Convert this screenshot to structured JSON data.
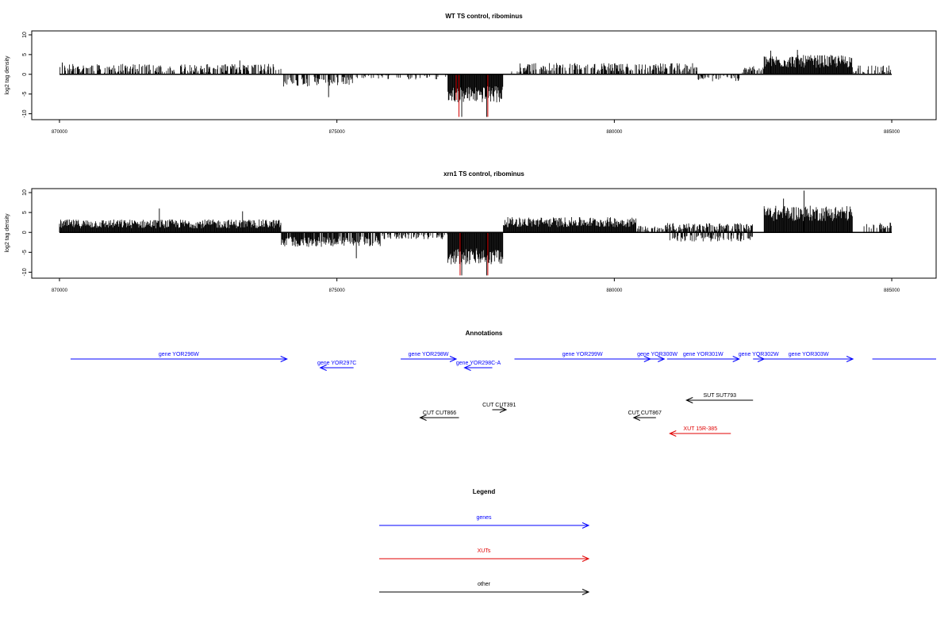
{
  "chart_data": [
    {
      "type": "bar",
      "title": "WT TS control, ribominus",
      "xlabel": "",
      "ylabel": "log2 tag density",
      "xlim": [
        869500,
        885800
      ],
      "ylim": [
        -11.5,
        11
      ],
      "x_ticks": [
        870000,
        875000,
        880000,
        885000
      ],
      "x_tick_labels": [
        "870000",
        "875000",
        "880000",
        "885000"
      ],
      "y_ticks": [
        -10,
        -5,
        0,
        5,
        10
      ],
      "y_tick_labels": [
        "-10",
        "-5",
        "0",
        "5",
        "10"
      ],
      "baseline_x": [
        870000,
        885000
      ],
      "segments": [
        {
          "from": 870000,
          "to": 874000,
          "mean": 1.2,
          "spread": 1.6,
          "density": 0.55,
          "sign": 1
        },
        {
          "from": 874000,
          "to": 875300,
          "mean": -1.5,
          "spread": 1.8,
          "density": 0.5,
          "sign": -1
        },
        {
          "from": 875300,
          "to": 877000,
          "mean": -0.6,
          "spread": 0.8,
          "density": 0.25,
          "sign": -1
        },
        {
          "from": 877000,
          "to": 878000,
          "mean": -4.5,
          "spread": 3,
          "density": 1,
          "sign": -1
        },
        {
          "from": 878000,
          "to": 878300,
          "mean": 0.4,
          "spread": 0.5,
          "density": 0.15,
          "sign": 1
        },
        {
          "from": 878300,
          "to": 881500,
          "mean": 1.4,
          "spread": 1.6,
          "density": 0.6,
          "sign": 1
        },
        {
          "from": 881500,
          "to": 882300,
          "mean": -0.8,
          "spread": 1.2,
          "density": 0.5,
          "sign": -1
        },
        {
          "from": 882300,
          "to": 882700,
          "mean": 1.0,
          "spread": 1.2,
          "density": 0.5,
          "sign": 1
        },
        {
          "from": 882700,
          "to": 884300,
          "mean": 2.8,
          "spread": 2.3,
          "density": 1,
          "sign": 1
        },
        {
          "from": 884300,
          "to": 885000,
          "mean": 1.0,
          "spread": 1.4,
          "density": 0.4,
          "sign": 1
        }
      ],
      "peaks": [
        [
          870050,
          3
        ],
        [
          873250,
          3.5
        ],
        [
          874850,
          -5.8
        ],
        [
          877250,
          -10.8
        ],
        [
          877700,
          -10.8
        ],
        [
          882820,
          6
        ],
        [
          883300,
          6.2
        ],
        [
          883700,
          4.8
        ]
      ],
      "highlight_bars": [
        {
          "x": 877200,
          "y": -10.8,
          "color": "#d40000"
        },
        {
          "x": 877720,
          "y": -10.8,
          "color": "#d40000"
        },
        {
          "x": 877150,
          "y": -6.5,
          "color": "#d40000"
        }
      ],
      "bar_color": "#000000"
    },
    {
      "type": "bar",
      "title": "xrn1 TS control, ribominus",
      "xlabel": "",
      "ylabel": "log2 tag density",
      "xlim": [
        869500,
        885800
      ],
      "ylim": [
        -11.5,
        11
      ],
      "x_ticks": [
        870000,
        875000,
        880000,
        885000
      ],
      "x_tick_labels": [
        "870000",
        "875000",
        "880000",
        "885000"
      ],
      "y_ticks": [
        -10,
        -5,
        0,
        5,
        10
      ],
      "y_tick_labels": [
        "-10",
        "-5",
        "0",
        "5",
        "10"
      ],
      "baseline_x": [
        870000,
        885000
      ],
      "segments": [
        {
          "from": 870000,
          "to": 874000,
          "mean": 1.8,
          "spread": 1.6,
          "density": 1,
          "sign": 1
        },
        {
          "from": 874000,
          "to": 875000,
          "mean": -2.0,
          "spread": 1.8,
          "density": 0.9,
          "sign": -1
        },
        {
          "from": 875000,
          "to": 875800,
          "mean": -1.8,
          "spread": 1.8,
          "density": 0.8,
          "sign": -1
        },
        {
          "from": 875800,
          "to": 877000,
          "mean": -0.8,
          "spread": 1.0,
          "density": 0.5,
          "sign": -1
        },
        {
          "from": 877000,
          "to": 878000,
          "mean": -5.5,
          "spread": 3,
          "density": 1,
          "sign": -1
        },
        {
          "from": 878000,
          "to": 880400,
          "mean": 2.2,
          "spread": 1.8,
          "density": 1,
          "sign": 1
        },
        {
          "from": 880400,
          "to": 880900,
          "mean": 0.8,
          "spread": 1.0,
          "density": 0.4,
          "sign": 1
        },
        {
          "from": 880900,
          "to": 882500,
          "mean": 1.0,
          "spread": 1.5,
          "density": 0.8,
          "sign": 1
        },
        {
          "from": 881000,
          "to": 882500,
          "mean": -1.2,
          "spread": 1.2,
          "density": 0.5,
          "sign": -1
        },
        {
          "from": 882700,
          "to": 884300,
          "mean": 4.2,
          "spread": 2.8,
          "density": 1,
          "sign": 1
        },
        {
          "from": 884500,
          "to": 885000,
          "mean": 1.3,
          "spread": 1.3,
          "density": 0.5,
          "sign": 1
        }
      ],
      "peaks": [
        [
          871800,
          6
        ],
        [
          873300,
          5.3
        ],
        [
          875350,
          -6.5
        ],
        [
          877250,
          -10.8
        ],
        [
          877700,
          -10.8
        ],
        [
          883420,
          10.5
        ],
        [
          883050,
          8.5
        ]
      ],
      "highlight_bars": [
        {
          "x": 877220,
          "y": -10.8,
          "color": "#d40000"
        },
        {
          "x": 877720,
          "y": -10.8,
          "color": "#d40000"
        }
      ],
      "bar_color": "#000000"
    }
  ],
  "annotations": {
    "title": "Annotations",
    "xlim": [
      869500,
      885800
    ],
    "features": [
      {
        "label": "gene YOR296W",
        "start": 870200,
        "end": 874100,
        "dir": 1,
        "row": 0,
        "color": "#0000ff"
      },
      {
        "label": "gene YOR297C",
        "start": 874700,
        "end": 875300,
        "dir": -1,
        "row": 1,
        "color": "#0000ff"
      },
      {
        "label": "gene YOR298W",
        "start": 876150,
        "end": 877150,
        "dir": 1,
        "row": 0,
        "color": "#0000ff"
      },
      {
        "label": "gene YOR298C-A",
        "start": 877300,
        "end": 877800,
        "dir": -1,
        "row": 1,
        "color": "#0000ff"
      },
      {
        "label": "gene YOR299W",
        "start": 878200,
        "end": 880650,
        "dir": 1,
        "row": 0,
        "color": "#0000ff"
      },
      {
        "label": "gene YOR300W",
        "start": 880650,
        "end": 880900,
        "dir": 1,
        "row": 0,
        "color": "#0000ff"
      },
      {
        "label": "gene YOR301W",
        "start": 880950,
        "end": 882250,
        "dir": 1,
        "row": 0,
        "color": "#0000ff"
      },
      {
        "label": "gene YOR302W",
        "start": 882500,
        "end": 882700,
        "dir": 1,
        "row": 0,
        "color": "#0000ff"
      },
      {
        "label": "gene YOR303W",
        "start": 882700,
        "end": 884300,
        "dir": 1,
        "row": 0,
        "color": "#0000ff"
      },
      {
        "label": "",
        "start": 884650,
        "end": 885800,
        "dir": 0,
        "row": 0,
        "color": "#0000ff"
      },
      {
        "label": "SUT SUT793",
        "start": 881300,
        "end": 882500,
        "dir": -1,
        "row": 2,
        "color": "#000000"
      },
      {
        "label": "CUT CUT391",
        "start": 877800,
        "end": 878050,
        "dir": 1,
        "row": 3,
        "color": "#000000"
      },
      {
        "label": "CUT CUT866",
        "start": 876500,
        "end": 877200,
        "dir": -1,
        "row": 4,
        "color": "#000000"
      },
      {
        "label": "CUT CUT867",
        "start": 880350,
        "end": 880750,
        "dir": -1,
        "row": 4,
        "color": "#000000"
      },
      {
        "label": "XUT 15R-385",
        "start": 881000,
        "end": 882100,
        "dir": -1,
        "row": 5,
        "color": "#e00000"
      }
    ]
  },
  "legend": {
    "title": "Legend",
    "items": [
      {
        "label": "genes",
        "color": "#0000ff"
      },
      {
        "label": "XUTs",
        "color": "#e00000"
      },
      {
        "label": "other",
        "color": "#000000"
      }
    ]
  }
}
